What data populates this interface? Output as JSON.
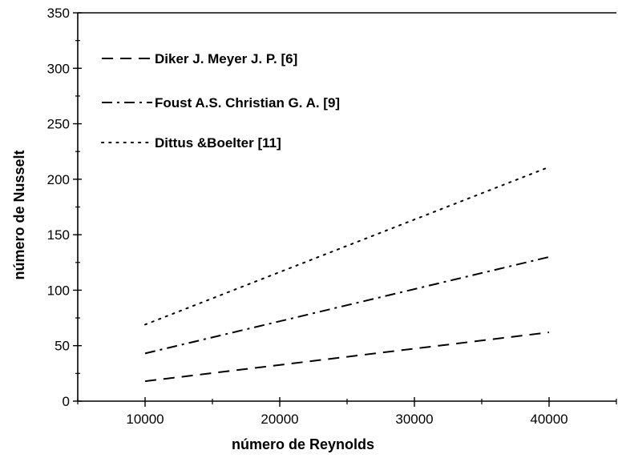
{
  "chart_data": {
    "type": "line",
    "xlabel": "número de Reynolds",
    "ylabel": "número de Nusselt",
    "xlim": [
      5000,
      45000
    ],
    "ylim": [
      0,
      350
    ],
    "xticks": [
      10000,
      20000,
      30000,
      40000
    ],
    "yticks": [
      0,
      50,
      100,
      150,
      200,
      250,
      300,
      350
    ],
    "grid": false,
    "legend_position": "top-left",
    "series": [
      {
        "name": "Diker J. Meyer J. P. [6]",
        "style": "dashed",
        "x": [
          10000,
          40000
        ],
        "y": [
          18,
          62
        ]
      },
      {
        "name": "Foust A.S. Christian G. A. [9]",
        "style": "dash-dot",
        "x": [
          10000,
          40000
        ],
        "y": [
          43,
          130
        ]
      },
      {
        "name": "Dittus &Boelter [11]",
        "style": "dotted",
        "x": [
          10000,
          40000
        ],
        "y": [
          69,
          211
        ]
      }
    ],
    "line_color": "#000000"
  }
}
